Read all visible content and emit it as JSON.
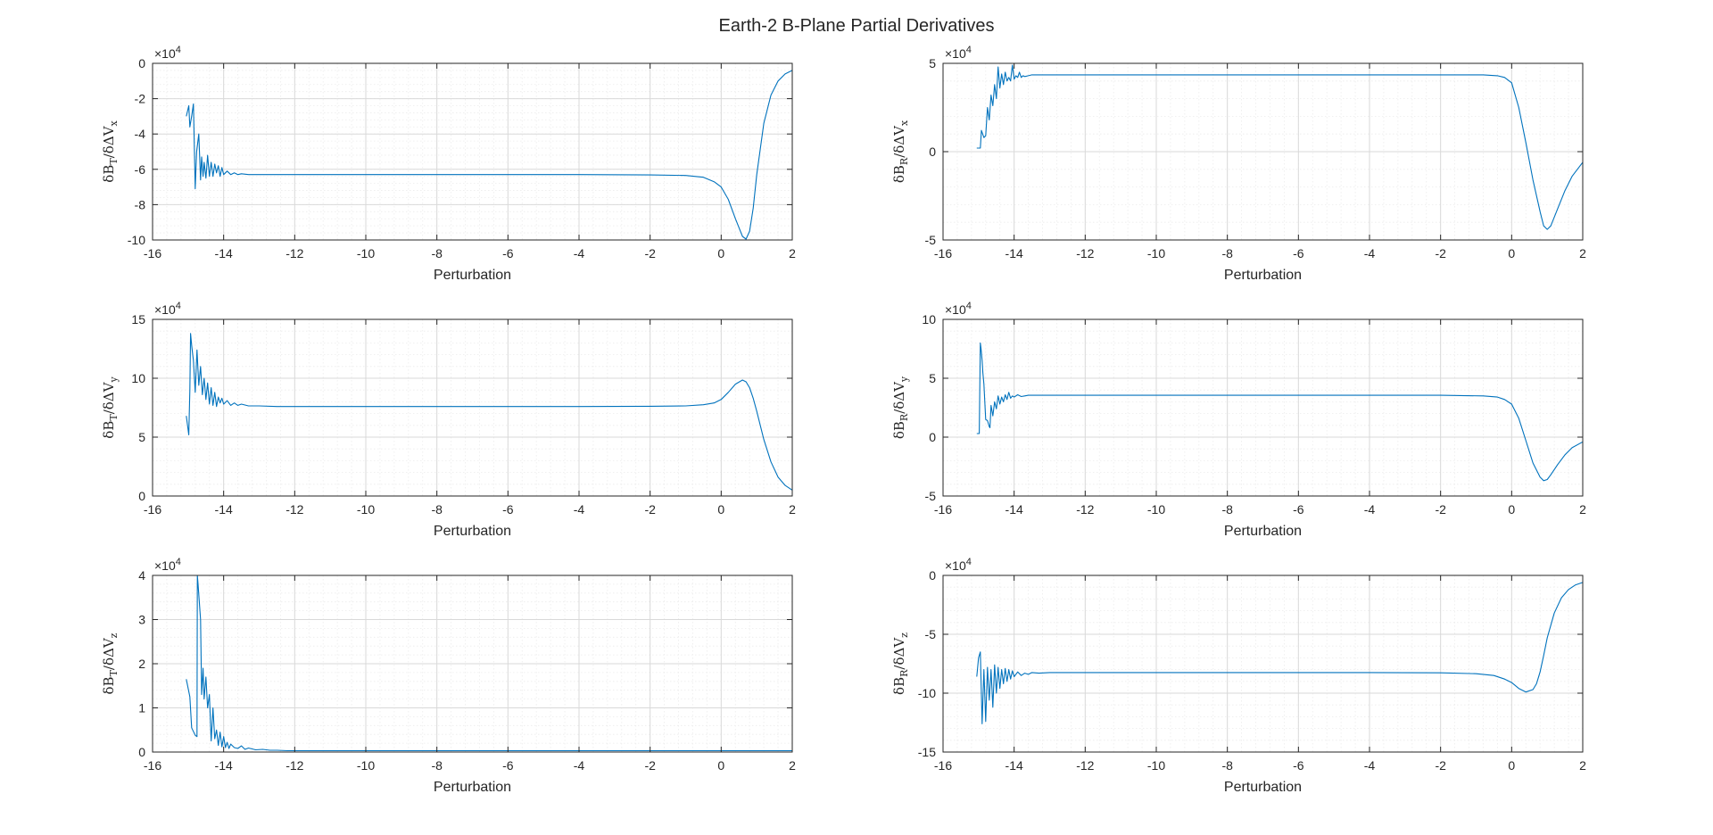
{
  "figure": {
    "title": "Earth-2 B-Plane Partial Derivatives"
  },
  "colors": {
    "series": "#0072bd",
    "axes": "#262626",
    "grid": "#d9d9d9",
    "background": "#ffffff"
  },
  "chart_data": [
    {
      "type": "line",
      "xlabel": "Perturbation",
      "ylabel": "δB_T/δΔV_x",
      "exponent": "×10^4",
      "xlim": [
        -16,
        2
      ],
      "ylim": [
        -10,
        0
      ],
      "scale": 10000,
      "xticks": [
        "-16",
        "-14",
        "-12",
        "-10",
        "-8",
        "-6",
        "-4",
        "-2",
        "0",
        "2"
      ],
      "yticks": [
        "-10",
        "-8",
        "-6",
        "-4",
        "-2",
        "0"
      ],
      "grid": true,
      "x": [
        -15.05,
        -14.98,
        -14.95,
        -14.9,
        -14.85,
        -14.8,
        -14.78,
        -14.76,
        -14.7,
        -14.65,
        -14.62,
        -14.58,
        -14.55,
        -14.5,
        -14.45,
        -14.4,
        -14.35,
        -14.3,
        -14.25,
        -14.2,
        -14.15,
        -14.1,
        -14.05,
        -14.0,
        -13.9,
        -13.8,
        -13.7,
        -13.6,
        -13.5,
        -13.3,
        -13.0,
        -12.5,
        -12.0,
        -10.0,
        -8.0,
        -6.0,
        -4.0,
        -2.0,
        -1.0,
        -0.5,
        -0.2,
        0.0,
        0.2,
        0.4,
        0.6,
        0.7,
        0.8,
        0.9,
        1.0,
        1.2,
        1.4,
        1.6,
        1.8,
        2.0
      ],
      "y": [
        -3.0,
        -2.4,
        -3.6,
        -3.0,
        -2.3,
        -7.1,
        -6.0,
        -5.0,
        -4.0,
        -6.6,
        -5.3,
        -6.4,
        -5.6,
        -6.5,
        -5.2,
        -6.4,
        -5.6,
        -6.4,
        -5.7,
        -6.2,
        -5.8,
        -6.4,
        -5.9,
        -6.3,
        -6.1,
        -6.3,
        -6.2,
        -6.3,
        -6.25,
        -6.3,
        -6.3,
        -6.3,
        -6.3,
        -6.3,
        -6.3,
        -6.3,
        -6.3,
        -6.32,
        -6.35,
        -6.45,
        -6.7,
        -7.0,
        -7.7,
        -8.8,
        -9.8,
        -9.95,
        -9.5,
        -8.2,
        -6.3,
        -3.4,
        -1.8,
        -1.0,
        -0.6,
        -0.4
      ]
    },
    {
      "type": "line",
      "xlabel": "Perturbation",
      "ylabel": "δB_R/δΔV_x",
      "exponent": "×10^4",
      "xlim": [
        -16,
        2
      ],
      "ylim": [
        -5,
        5
      ],
      "scale": 10000,
      "xticks": [
        "-16",
        "-14",
        "-12",
        "-10",
        "-8",
        "-6",
        "-4",
        "-2",
        "0",
        "2"
      ],
      "yticks": [
        "-5",
        "0",
        "5"
      ],
      "grid": true,
      "x": [
        -15.05,
        -14.95,
        -14.92,
        -14.85,
        -14.8,
        -14.75,
        -14.7,
        -14.65,
        -14.6,
        -14.55,
        -14.5,
        -14.45,
        -14.4,
        -14.35,
        -14.3,
        -14.25,
        -14.2,
        -14.15,
        -14.1,
        -14.05,
        -14.0,
        -13.95,
        -13.9,
        -13.85,
        -13.8,
        -13.75,
        -13.7,
        -13.6,
        -13.5,
        -13.3,
        -13.0,
        -12.5,
        -12.0,
        -10.0,
        -8.0,
        -6.0,
        -4.0,
        -2.0,
        -0.8,
        -0.4,
        -0.2,
        0.0,
        0.2,
        0.4,
        0.6,
        0.8,
        0.9,
        1.0,
        1.1,
        1.3,
        1.5,
        1.7,
        2.0
      ],
      "y": [
        0.2,
        0.2,
        1.2,
        0.8,
        0.9,
        2.5,
        1.8,
        3.2,
        2.6,
        3.8,
        3.0,
        4.8,
        3.6,
        4.4,
        3.8,
        4.5,
        4.0,
        4.2,
        4.0,
        4.9,
        4.1,
        4.3,
        4.2,
        4.5,
        4.2,
        4.3,
        4.25,
        4.3,
        4.35,
        4.35,
        4.35,
        4.35,
        4.35,
        4.35,
        4.35,
        4.35,
        4.35,
        4.35,
        4.35,
        4.3,
        4.2,
        3.9,
        2.5,
        0.5,
        -1.6,
        -3.4,
        -4.2,
        -4.4,
        -4.2,
        -3.2,
        -2.2,
        -1.4,
        -0.6
      ]
    },
    {
      "type": "line",
      "xlabel": "Perturbation",
      "ylabel": "δB_T/δΔV_y",
      "exponent": "×10^4",
      "xlim": [
        -16,
        2
      ],
      "ylim": [
        0,
        15
      ],
      "scale": 10000,
      "xticks": [
        "-16",
        "-14",
        "-12",
        "-10",
        "-8",
        "-6",
        "-4",
        "-2",
        "0",
        "2"
      ],
      "yticks": [
        "0",
        "5",
        "10",
        "15"
      ],
      "grid": true,
      "x": [
        -15.05,
        -14.98,
        -14.95,
        -14.93,
        -14.9,
        -14.85,
        -14.8,
        -14.75,
        -14.7,
        -14.65,
        -14.6,
        -14.55,
        -14.5,
        -14.45,
        -14.4,
        -14.35,
        -14.3,
        -14.25,
        -14.2,
        -14.15,
        -14.1,
        -14.05,
        -14.0,
        -13.9,
        -13.8,
        -13.7,
        -13.6,
        -13.5,
        -13.3,
        -13.0,
        -12.5,
        -12.0,
        -10.0,
        -8.0,
        -6.0,
        -4.0,
        -2.0,
        -1.0,
        -0.5,
        -0.2,
        0.0,
        0.2,
        0.4,
        0.6,
        0.7,
        0.8,
        0.9,
        1.0,
        1.2,
        1.4,
        1.6,
        1.8,
        2.0
      ],
      "y": [
        6.8,
        5.2,
        9.0,
        13.8,
        12.8,
        11.5,
        8.8,
        12.4,
        9.4,
        11.0,
        8.6,
        10.0,
        8.2,
        9.6,
        7.8,
        9.2,
        7.7,
        8.8,
        7.6,
        8.4,
        7.9,
        8.3,
        7.8,
        8.1,
        7.7,
        7.9,
        7.7,
        7.8,
        7.65,
        7.65,
        7.6,
        7.6,
        7.6,
        7.6,
        7.6,
        7.6,
        7.62,
        7.65,
        7.75,
        7.9,
        8.2,
        8.8,
        9.5,
        9.85,
        9.7,
        9.2,
        8.3,
        7.2,
        4.8,
        2.9,
        1.6,
        0.9,
        0.5
      ]
    },
    {
      "type": "line",
      "xlabel": "Perturbation",
      "ylabel": "δB_R/δΔV_y",
      "exponent": "×10^4",
      "xlim": [
        -16,
        2
      ],
      "ylim": [
        -5,
        10
      ],
      "scale": 10000,
      "xticks": [
        "-16",
        "-14",
        "-12",
        "-10",
        "-8",
        "-6",
        "-4",
        "-2",
        "0",
        "2"
      ],
      "yticks": [
        "-5",
        "0",
        "5",
        "10"
      ],
      "grid": true,
      "x": [
        -15.05,
        -14.98,
        -14.95,
        -14.93,
        -14.9,
        -14.88,
        -14.85,
        -14.8,
        -14.75,
        -14.7,
        -14.68,
        -14.65,
        -14.6,
        -14.55,
        -14.5,
        -14.45,
        -14.4,
        -14.35,
        -14.3,
        -14.25,
        -14.2,
        -14.15,
        -14.1,
        -14.05,
        -14.0,
        -13.9,
        -13.8,
        -13.7,
        -13.6,
        -13.5,
        -13.3,
        -13.0,
        -12.5,
        -12.0,
        -10.0,
        -8.0,
        -6.0,
        -4.0,
        -2.0,
        -0.8,
        -0.4,
        -0.2,
        0.0,
        0.2,
        0.4,
        0.6,
        0.8,
        0.9,
        1.0,
        1.1,
        1.3,
        1.5,
        1.7,
        2.0
      ],
      "y": [
        0.3,
        0.3,
        8.0,
        7.5,
        6.5,
        5.5,
        4.5,
        1.5,
        1.4,
        0.9,
        0.8,
        2.7,
        1.8,
        3.0,
        2.4,
        3.5,
        2.8,
        3.4,
        3.0,
        3.6,
        3.2,
        3.8,
        3.3,
        3.5,
        3.4,
        3.6,
        3.45,
        3.5,
        3.55,
        3.55,
        3.55,
        3.55,
        3.55,
        3.55,
        3.55,
        3.55,
        3.55,
        3.55,
        3.55,
        3.5,
        3.4,
        3.2,
        2.8,
        1.6,
        -0.3,
        -2.2,
        -3.4,
        -3.7,
        -3.6,
        -3.2,
        -2.3,
        -1.5,
        -0.9,
        -0.4
      ]
    },
    {
      "type": "line",
      "xlabel": "Perturbation",
      "ylabel": "δB_T/δΔV_z",
      "exponent": "×10^4",
      "xlim": [
        -16,
        2
      ],
      "ylim": [
        0,
        4
      ],
      "scale": 10000,
      "xticks": [
        "-16",
        "-14",
        "-12",
        "-10",
        "-8",
        "-6",
        "-4",
        "-2",
        "0",
        "2"
      ],
      "yticks": [
        "0",
        "1",
        "2",
        "3",
        "4"
      ],
      "grid": true,
      "x": [
        -15.05,
        -14.95,
        -14.9,
        -14.8,
        -14.75,
        -14.74,
        -14.72,
        -14.65,
        -14.62,
        -14.58,
        -14.55,
        -14.5,
        -14.45,
        -14.4,
        -14.35,
        -14.3,
        -14.25,
        -14.2,
        -14.15,
        -14.1,
        -14.05,
        -14.0,
        -13.95,
        -13.9,
        -13.85,
        -13.8,
        -13.7,
        -13.6,
        -13.5,
        -13.4,
        -13.3,
        -13.1,
        -12.9,
        -12.7,
        -12.5,
        -12.2,
        -12.0,
        -10.0,
        -8.0,
        -6.0,
        -4.0,
        -2.0,
        0.0,
        2.0
      ],
      "y": [
        1.65,
        1.25,
        0.55,
        0.38,
        0.35,
        4.0,
        3.8,
        3.0,
        1.3,
        1.9,
        1.2,
        1.7,
        1.0,
        1.3,
        0.25,
        1.0,
        0.3,
        0.5,
        0.15,
        0.45,
        0.12,
        0.35,
        0.1,
        0.22,
        0.08,
        0.18,
        0.1,
        0.08,
        0.14,
        0.06,
        0.09,
        0.05,
        0.06,
        0.04,
        0.04,
        0.03,
        0.03,
        0.03,
        0.03,
        0.03,
        0.03,
        0.03,
        0.03,
        0.03
      ]
    },
    {
      "type": "line",
      "xlabel": "Perturbation",
      "ylabel": "δB_R/δΔV_z",
      "exponent": "×10^4",
      "xlim": [
        -16,
        2
      ],
      "ylim": [
        -15,
        0
      ],
      "scale": 10000,
      "xticks": [
        "-16",
        "-14",
        "-12",
        "-10",
        "-8",
        "-6",
        "-4",
        "-2",
        "0",
        "2"
      ],
      "yticks": [
        "-15",
        "-10",
        "-5",
        "0"
      ],
      "grid": true,
      "x": [
        -15.05,
        -15.0,
        -14.95,
        -14.9,
        -14.85,
        -14.8,
        -14.75,
        -14.7,
        -14.65,
        -14.6,
        -14.55,
        -14.5,
        -14.45,
        -14.4,
        -14.35,
        -14.3,
        -14.25,
        -14.2,
        -14.15,
        -14.1,
        -14.05,
        -14.0,
        -13.9,
        -13.8,
        -13.7,
        -13.6,
        -13.5,
        -13.3,
        -13.0,
        -12.5,
        -12.0,
        -10.0,
        -8.0,
        -6.0,
        -4.0,
        -2.0,
        -1.0,
        -0.5,
        -0.2,
        0.0,
        0.2,
        0.4,
        0.6,
        0.7,
        0.8,
        0.9,
        1.0,
        1.2,
        1.4,
        1.6,
        1.8,
        2.0
      ],
      "y": [
        -8.6,
        -7.0,
        -6.5,
        -12.6,
        -8.0,
        -12.4,
        -7.8,
        -10.6,
        -8.0,
        -11.2,
        -7.6,
        -10.0,
        -7.8,
        -9.6,
        -8.0,
        -9.2,
        -7.9,
        -9.0,
        -8.0,
        -8.8,
        -8.1,
        -8.6,
        -8.2,
        -8.5,
        -8.3,
        -8.4,
        -8.25,
        -8.3,
        -8.25,
        -8.25,
        -8.25,
        -8.25,
        -8.25,
        -8.25,
        -8.25,
        -8.27,
        -8.35,
        -8.5,
        -8.8,
        -9.1,
        -9.6,
        -9.9,
        -9.7,
        -9.2,
        -8.2,
        -6.8,
        -5.3,
        -3.2,
        -1.9,
        -1.2,
        -0.8,
        -0.6
      ]
    }
  ]
}
